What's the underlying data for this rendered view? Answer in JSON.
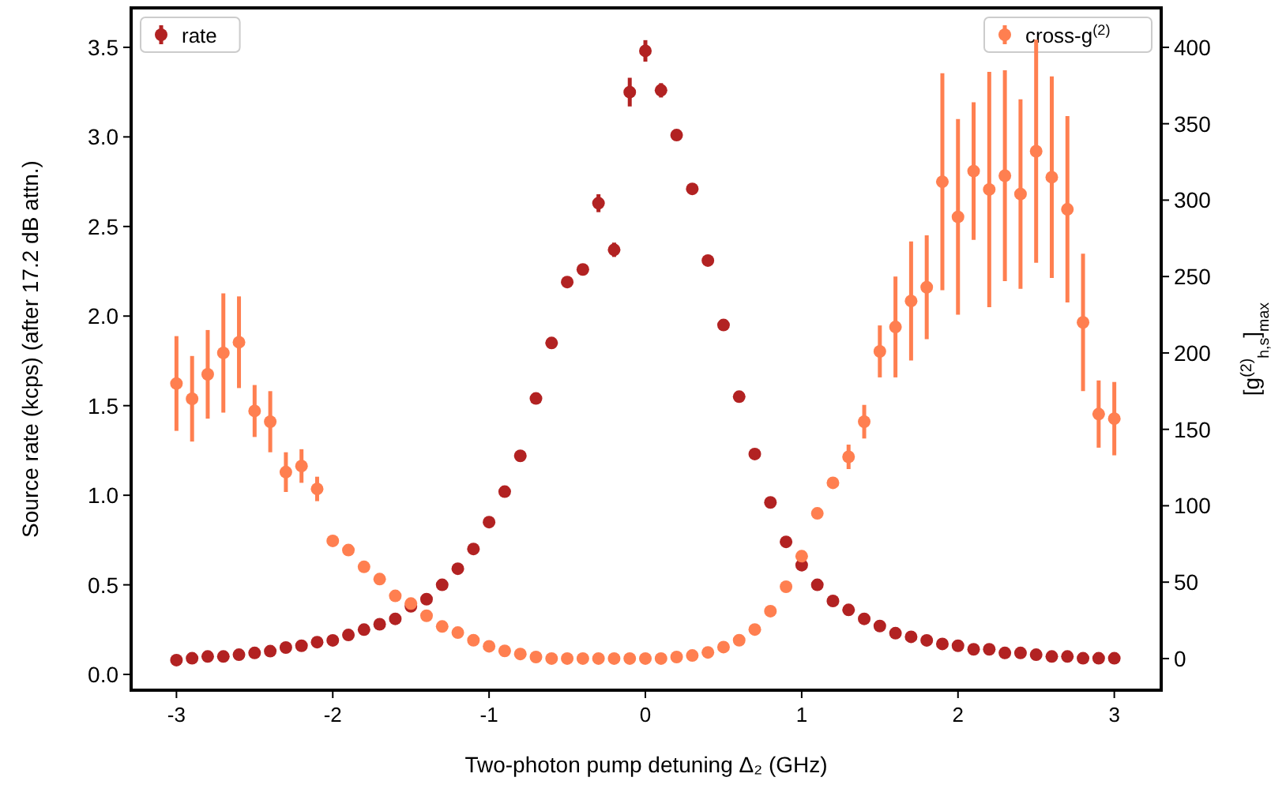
{
  "chart_data": {
    "type": "scatter",
    "xlabel": "Two-photon pump detuning Δ₂ (GHz)",
    "ylabel": "Source rate (kcps) (after 17.2 dB attn.)",
    "y2label": "[g$^{(2)}$$_{h,s}$]$_{max}$",
    "x": [
      -3,
      -2.9,
      -2.8,
      -2.7,
      -2.6,
      -2.5,
      -2.4,
      -2.3,
      -2.2,
      -2.1,
      -2,
      -1.9,
      -1.8,
      -1.7,
      -1.6,
      -1.5,
      -1.4,
      -1.3,
      -1.2,
      -1.1,
      -1,
      -0.9,
      -0.8,
      -0.7,
      -0.6,
      -0.5,
      -0.4,
      -0.3,
      -0.2,
      -0.1,
      0,
      0.1,
      0.2,
      0.3,
      0.4,
      0.5,
      0.6,
      0.7,
      0.8,
      0.9,
      1,
      1.1,
      1.2,
      1.3,
      1.4,
      1.5,
      1.6,
      1.7,
      1.8,
      1.9,
      2,
      2.1,
      2.2,
      2.3,
      2.4,
      2.5,
      2.6,
      2.7,
      2.8,
      2.9,
      3
    ],
    "series": [
      {
        "name": "rate",
        "color": "#b22222",
        "values": [
          0.08,
          0.09,
          0.1,
          0.1,
          0.11,
          0.12,
          0.13,
          0.15,
          0.16,
          0.18,
          0.19,
          0.22,
          0.25,
          0.28,
          0.31,
          0.38,
          0.42,
          0.5,
          0.59,
          0.7,
          0.85,
          1.02,
          1.22,
          1.54,
          1.85,
          2.19,
          2.26,
          2.63,
          2.37,
          3.25,
          3.48,
          3.26,
          3.01,
          2.71,
          2.31,
          1.95,
          1.55,
          1.23,
          0.96,
          0.74,
          0.61,
          0.5,
          0.41,
          0.36,
          0.31,
          0.27,
          0.23,
          0.21,
          0.19,
          0.17,
          0.16,
          0.14,
          0.14,
          0.12,
          0.12,
          0.11,
          0.1,
          0.1,
          0.09,
          0.09,
          0.09
        ],
        "errors": [
          null,
          null,
          null,
          null,
          null,
          null,
          null,
          null,
          null,
          null,
          null,
          null,
          null,
          null,
          null,
          null,
          null,
          null,
          null,
          null,
          null,
          null,
          null,
          null,
          null,
          null,
          null,
          0.05,
          0.04,
          0.08,
          0.06,
          0.04,
          null,
          null,
          null,
          null,
          null,
          null,
          null,
          null,
          null,
          null,
          null,
          null,
          null,
          null,
          null,
          null,
          null,
          null,
          null,
          null,
          null,
          null,
          null,
          null,
          null,
          null,
          null,
          null,
          null
        ]
      },
      {
        "name": "cross-g$^{(2)}$",
        "color": "#ff7f50",
        "axis": "y2",
        "values": [
          180,
          170,
          186,
          200,
          207,
          162,
          155,
          122,
          126,
          111,
          77,
          71,
          60,
          52,
          41,
          36,
          28,
          21,
          17,
          12,
          8,
          5,
          3,
          1,
          0,
          0,
          0,
          0,
          0,
          0,
          0,
          0,
          1,
          2,
          4,
          7.5,
          12,
          19,
          31,
          47,
          67,
          95,
          115,
          132,
          155,
          201,
          217,
          234,
          243,
          312,
          289,
          319,
          307,
          316,
          304,
          332,
          315,
          294,
          220,
          160,
          157
        ],
        "errors": [
          31,
          28,
          29,
          39,
          30,
          17,
          20,
          13,
          11,
          8,
          null,
          null,
          null,
          null,
          null,
          null,
          null,
          null,
          null,
          null,
          null,
          null,
          null,
          null,
          null,
          null,
          null,
          null,
          null,
          null,
          null,
          null,
          null,
          null,
          null,
          null,
          null,
          null,
          null,
          null,
          null,
          null,
          null,
          8,
          11,
          17,
          33,
          39,
          34,
          71,
          64,
          45,
          77,
          69,
          62,
          73,
          66,
          61,
          45,
          22,
          24
        ]
      }
    ],
    "xlim": [
      -3.29,
      3.3
    ],
    "xticks": [
      -3,
      -2,
      -1,
      0,
      1,
      2,
      3
    ],
    "ylim": [
      -0.088,
      3.72
    ],
    "yticks": [
      {
        "value": 0,
        "label": "0.0"
      },
      {
        "value": 0.5,
        "label": "0.5"
      },
      {
        "value": 1,
        "label": "1.0"
      },
      {
        "value": 1.5,
        "label": "1.5"
      },
      {
        "value": 2,
        "label": "2.0"
      },
      {
        "value": 2.5,
        "label": "2.5"
      },
      {
        "value": 3,
        "label": "3.0"
      },
      {
        "value": 3.5,
        "label": "3.5"
      }
    ],
    "y2lim": [
      -20.7,
      425.8
    ],
    "y2ticks": [
      0,
      50,
      100,
      150,
      200,
      250,
      300,
      350,
      400
    ],
    "marker": "circle",
    "legend": "top",
    "grid": false
  }
}
